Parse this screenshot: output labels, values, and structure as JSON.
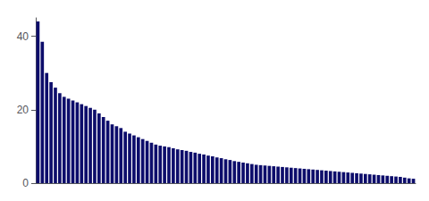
{
  "chart_data": {
    "type": "bar",
    "categories": [
      null,
      null,
      null,
      null,
      null,
      null,
      null,
      null,
      null,
      null,
      null,
      null,
      null,
      null,
      null,
      null,
      null,
      null,
      null,
      null,
      null,
      null,
      null,
      null,
      null,
      null,
      null,
      null,
      null,
      null,
      null,
      null,
      null,
      null,
      null,
      null,
      null,
      null,
      null,
      null,
      null,
      null,
      null,
      null,
      null,
      null,
      null,
      null,
      null,
      null,
      null,
      null,
      null,
      null,
      null,
      null,
      null,
      null,
      null,
      null,
      null,
      null,
      null,
      null,
      null,
      null,
      null,
      null,
      null,
      null,
      null,
      null,
      null,
      null,
      null,
      null,
      null,
      null,
      null,
      null,
      null,
      null,
      null,
      null,
      null,
      null,
      null
    ],
    "values": [
      44.0,
      38.5,
      30.0,
      27.5,
      26.0,
      24.5,
      23.5,
      23.0,
      22.5,
      22.0,
      21.5,
      21.0,
      20.5,
      20.0,
      19.0,
      18.0,
      17.0,
      16.0,
      15.5,
      15.0,
      14.0,
      13.5,
      13.0,
      12.5,
      12.0,
      11.5,
      11.0,
      10.5,
      10.2,
      10.0,
      9.8,
      9.5,
      9.2,
      9.0,
      8.8,
      8.5,
      8.3,
      8.0,
      7.8,
      7.5,
      7.3,
      7.0,
      6.8,
      6.5,
      6.3,
      6.0,
      5.8,
      5.6,
      5.4,
      5.2,
      5.0,
      4.9,
      4.8,
      4.7,
      4.6,
      4.5,
      4.4,
      4.3,
      4.2,
      4.1,
      4.0,
      3.9,
      3.8,
      3.7,
      3.6,
      3.5,
      3.4,
      3.3,
      3.2,
      3.1,
      3.0,
      2.9,
      2.8,
      2.7,
      2.6,
      2.5,
      2.4,
      2.3,
      2.2,
      2.1,
      2.0,
      1.9,
      1.8,
      1.7,
      1.5,
      1.3,
      1.2
    ],
    "color": "#0d0d6b",
    "ylim": [
      0,
      45
    ],
    "yticks": [
      0,
      20,
      40
    ],
    "grid": false,
    "tick_labels": "y"
  }
}
